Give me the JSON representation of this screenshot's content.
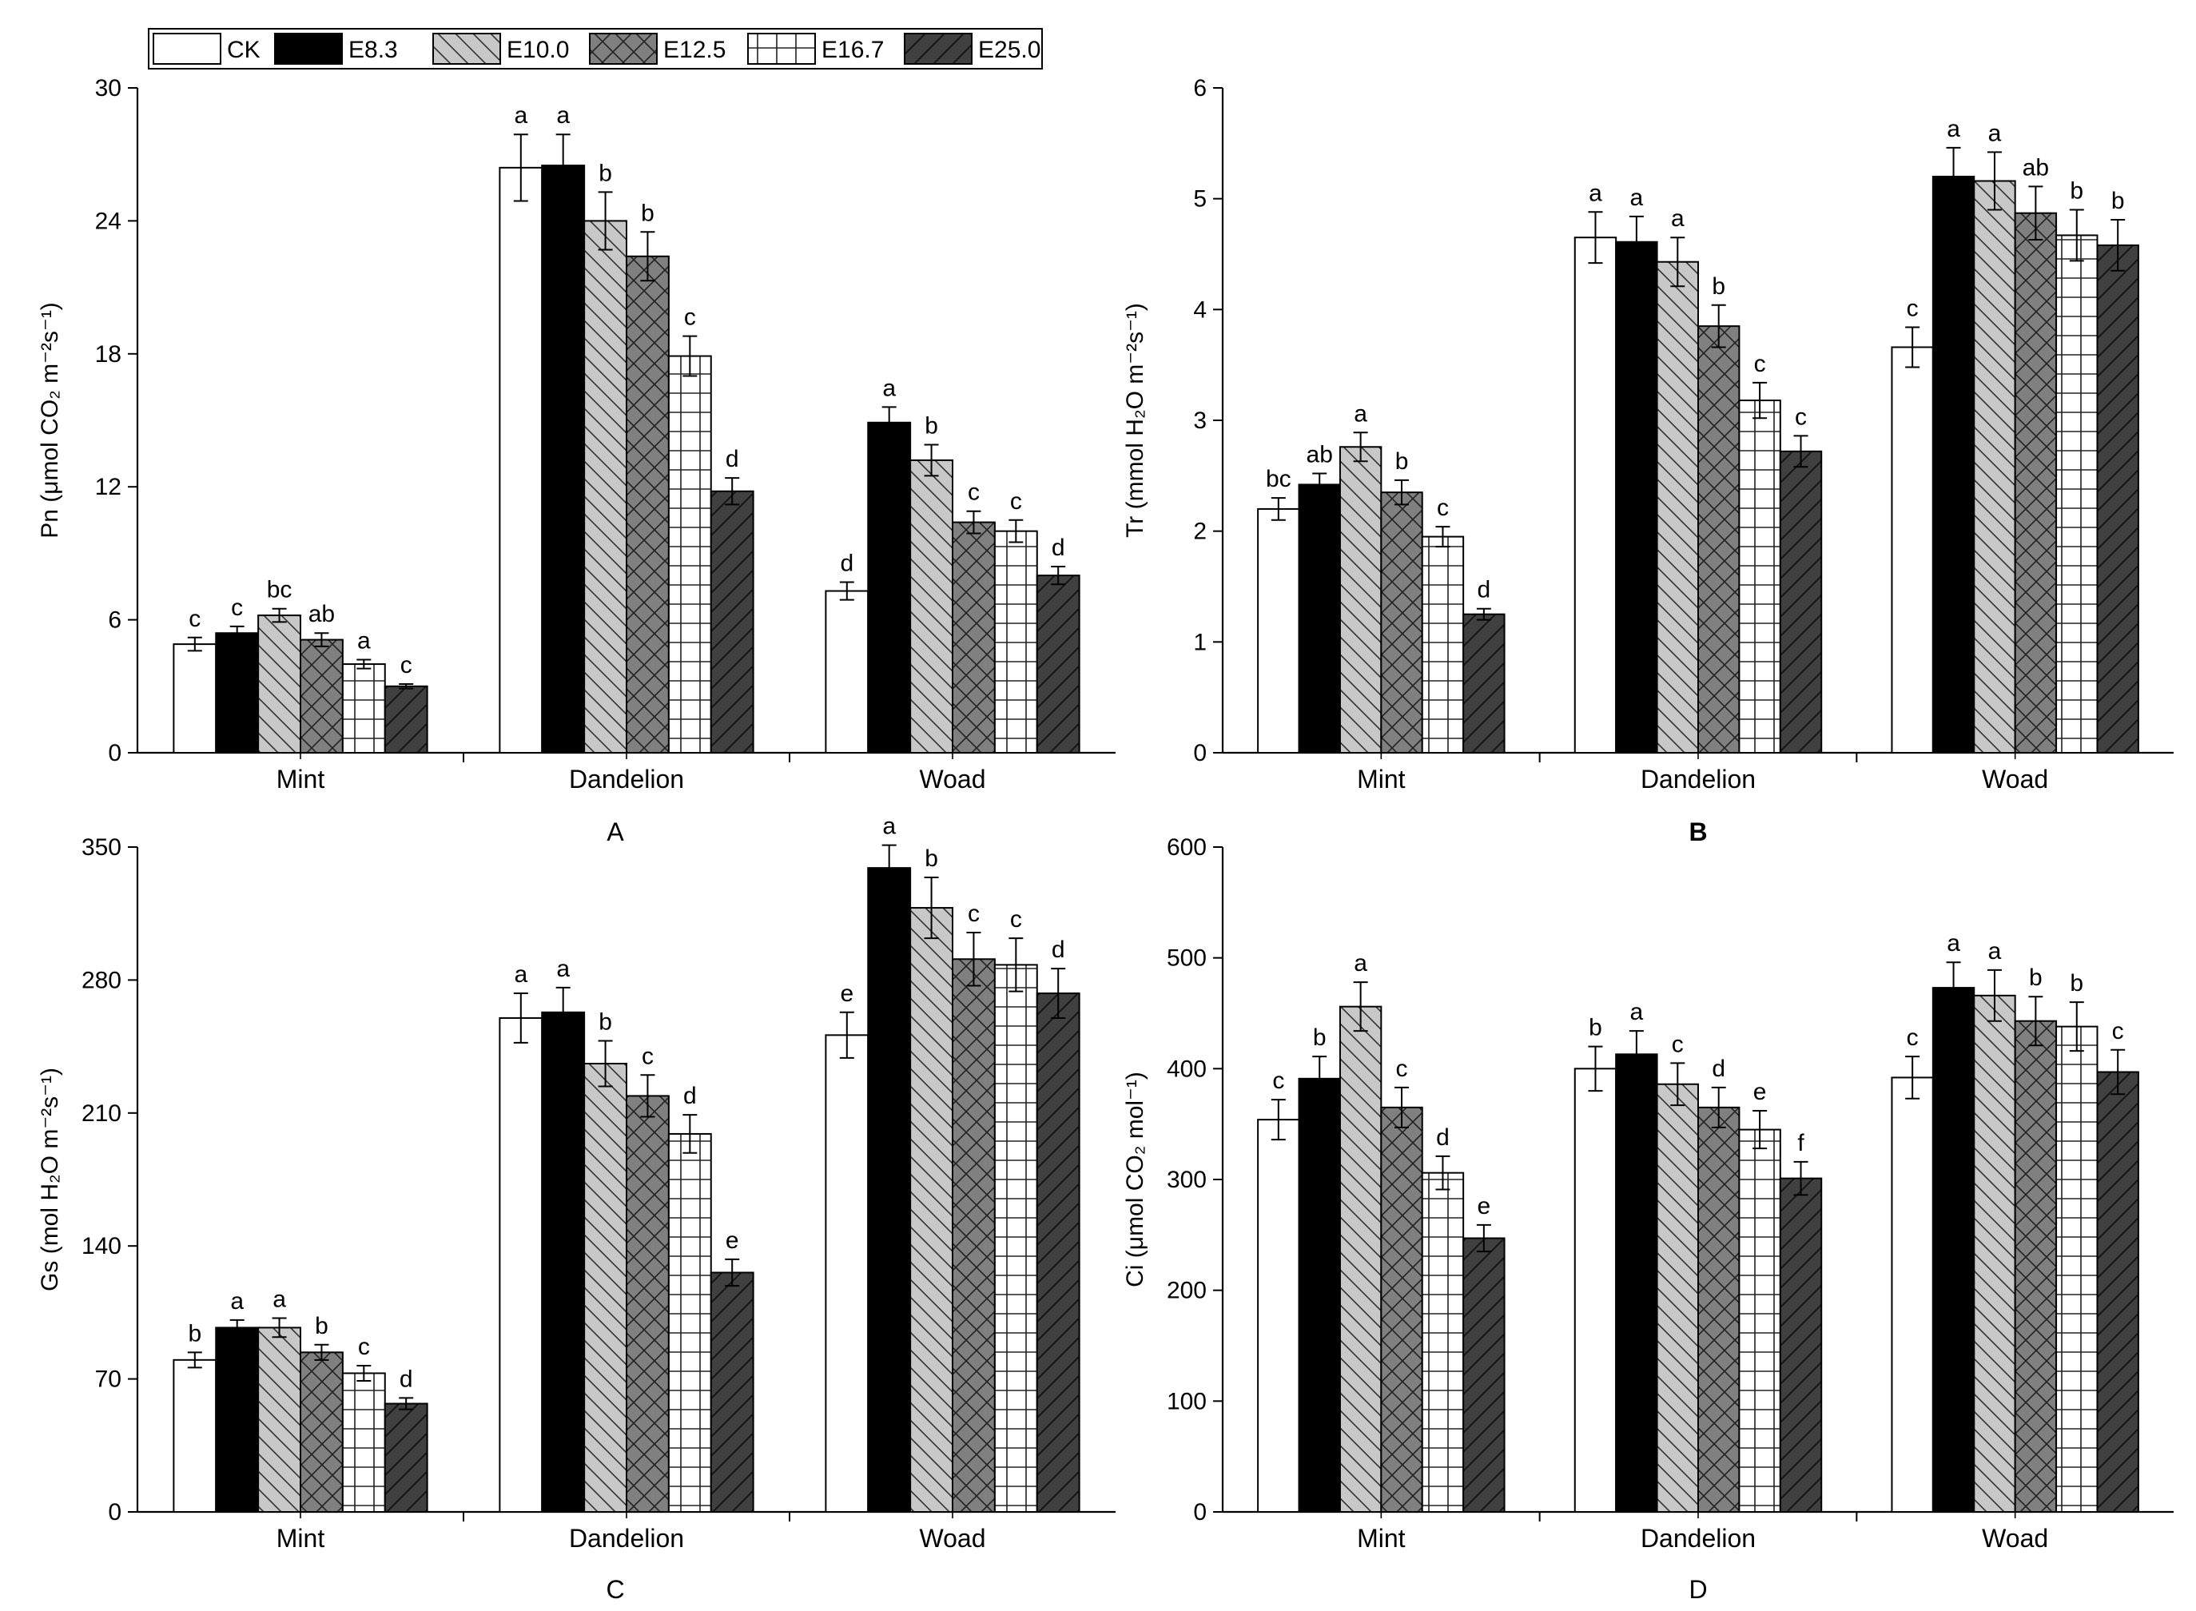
{
  "chart_data": [
    {
      "panel_label": "A",
      "type": "bar",
      "ylabel": "Pn (μmol CO₂ m⁻²s⁻¹)",
      "ylim": [
        0,
        30
      ],
      "yticks": [
        0,
        6,
        12,
        18,
        24,
        30
      ],
      "categories": [
        "Mint",
        "Dandelion",
        "Woad"
      ],
      "series": [
        {
          "name": "CK",
          "values": [
            4.9,
            26.4,
            7.3
          ],
          "errors": [
            0.3,
            1.5,
            0.4
          ],
          "sig": [
            "c",
            "a",
            "d"
          ]
        },
        {
          "name": "E8.3",
          "values": [
            5.4,
            26.5,
            14.9
          ],
          "errors": [
            0.3,
            1.4,
            0.7
          ],
          "sig": [
            "c",
            "a",
            "a"
          ]
        },
        {
          "name": "E10.0",
          "values": [
            6.2,
            24.0,
            13.2
          ],
          "errors": [
            0.3,
            1.3,
            0.7
          ],
          "sig": [
            "bc",
            "b",
            "b"
          ]
        },
        {
          "name": "E12.5",
          "values": [
            5.1,
            22.4,
            10.4
          ],
          "errors": [
            0.3,
            1.1,
            0.5
          ],
          "sig": [
            "ab",
            "b",
            "c"
          ]
        },
        {
          "name": "E16.7",
          "values": [
            4.0,
            17.9,
            10.0
          ],
          "errors": [
            0.2,
            0.9,
            0.5
          ],
          "sig": [
            "a",
            "c",
            "c"
          ]
        },
        {
          "name": "E25.0",
          "values": [
            3.0,
            11.8,
            8.0
          ],
          "errors": [
            0.1,
            0.6,
            0.4
          ],
          "sig": [
            "c",
            "d",
            "d"
          ]
        }
      ]
    },
    {
      "panel_label": "B",
      "type": "bar",
      "ylabel": "Tr (mmol H₂O m⁻²s⁻¹)",
      "ylim": [
        0,
        6
      ],
      "yticks": [
        0,
        1,
        2,
        3,
        4,
        5,
        6
      ],
      "categories": [
        "Mint",
        "Dandelion",
        "Woad"
      ],
      "series": [
        {
          "name": "CK",
          "values": [
            2.2,
            4.65,
            3.66
          ],
          "errors": [
            0.1,
            0.23,
            0.18
          ],
          "sig": [
            "bc",
            "a",
            "c"
          ]
        },
        {
          "name": "E8.3",
          "values": [
            2.42,
            4.61,
            5.2
          ],
          "errors": [
            0.1,
            0.23,
            0.26
          ],
          "sig": [
            "ab",
            "a",
            "a"
          ]
        },
        {
          "name": "E10.0",
          "values": [
            2.76,
            4.43,
            5.16
          ],
          "errors": [
            0.13,
            0.22,
            0.26
          ],
          "sig": [
            "a",
            "a",
            "a"
          ]
        },
        {
          "name": "E12.5",
          "values": [
            2.35,
            3.85,
            4.87
          ],
          "errors": [
            0.11,
            0.19,
            0.24
          ],
          "sig": [
            "b",
            "b",
            "ab"
          ]
        },
        {
          "name": "E16.7",
          "values": [
            1.95,
            3.18,
            4.67
          ],
          "errors": [
            0.09,
            0.16,
            0.23
          ],
          "sig": [
            "c",
            "c",
            "b"
          ]
        },
        {
          "name": "E25.0",
          "values": [
            1.25,
            2.72,
            4.58
          ],
          "errors": [
            0.05,
            0.14,
            0.23
          ],
          "sig": [
            "d",
            "c",
            "b"
          ]
        }
      ]
    },
    {
      "panel_label": "C",
      "type": "bar",
      "ylabel": "Gs (mol H₂O m⁻²s⁻¹)",
      "ylim": [
        0,
        350
      ],
      "yticks": [
        0,
        70,
        140,
        210,
        280,
        350
      ],
      "categories": [
        "Mint",
        "Dandelion",
        "Woad"
      ],
      "series": [
        {
          "name": "CK",
          "values": [
            80,
            260,
            251
          ],
          "errors": [
            4,
            13,
            12
          ],
          "sig": [
            "b",
            "a",
            "e"
          ]
        },
        {
          "name": "E8.3",
          "values": [
            97,
            263,
            339
          ],
          "errors": [
            4,
            13,
            12
          ],
          "sig": [
            "a",
            "a",
            "a"
          ]
        },
        {
          "name": "E10.0",
          "values": [
            97,
            236,
            318
          ],
          "errors": [
            5,
            12,
            16
          ],
          "sig": [
            "a",
            "b",
            "b"
          ]
        },
        {
          "name": "E12.5",
          "values": [
            84,
            219,
            291
          ],
          "errors": [
            4,
            11,
            14
          ],
          "sig": [
            "b",
            "c",
            "c"
          ]
        },
        {
          "name": "E16.7",
          "values": [
            73,
            199,
            288
          ],
          "errors": [
            4,
            10,
            14
          ],
          "sig": [
            "c",
            "d",
            "c"
          ]
        },
        {
          "name": "E25.0",
          "values": [
            57,
            126,
            273
          ],
          "errors": [
            3,
            7,
            13
          ],
          "sig": [
            "d",
            "e",
            "d"
          ]
        }
      ]
    },
    {
      "panel_label": "D",
      "type": "bar",
      "ylabel": "Ci (μmol CO₂ mol⁻¹)",
      "ylim": [
        0,
        600
      ],
      "yticks": [
        0,
        100,
        200,
        300,
        400,
        500,
        600
      ],
      "categories": [
        "Mint",
        "Dandelion",
        "Woad"
      ],
      "series": [
        {
          "name": "CK",
          "values": [
            354,
            400,
            392
          ],
          "errors": [
            18,
            20,
            19
          ],
          "sig": [
            "c",
            "b",
            "c"
          ]
        },
        {
          "name": "E8.3",
          "values": [
            391,
            413,
            473
          ],
          "errors": [
            20,
            21,
            23
          ],
          "sig": [
            "b",
            "a",
            "a"
          ]
        },
        {
          "name": "E10.0",
          "values": [
            456,
            386,
            466
          ],
          "errors": [
            22,
            19,
            23
          ],
          "sig": [
            "a",
            "c",
            "a"
          ]
        },
        {
          "name": "E12.5",
          "values": [
            365,
            365,
            443
          ],
          "errors": [
            18,
            18,
            22
          ],
          "sig": [
            "c",
            "d",
            "b"
          ]
        },
        {
          "name": "E16.7",
          "values": [
            306,
            345,
            438
          ],
          "errors": [
            15,
            17,
            22
          ],
          "sig": [
            "d",
            "e",
            "b"
          ]
        },
        {
          "name": "E25.0",
          "values": [
            247,
            301,
            397
          ],
          "errors": [
            12,
            15,
            20
          ],
          "sig": [
            "e",
            "f",
            "c"
          ]
        }
      ]
    }
  ],
  "legend": [
    {
      "name": "CK",
      "fill": "#ffffff",
      "pattern": "none"
    },
    {
      "name": "E8.3",
      "fill": "#000000",
      "pattern": "none"
    },
    {
      "name": "E10.0",
      "fill": "#c8c8c8",
      "pattern": "back-diagonal"
    },
    {
      "name": "E12.5",
      "fill": "#808080",
      "pattern": "crosshatch"
    },
    {
      "name": "E16.7",
      "fill": "#ffffff",
      "pattern": "grid"
    },
    {
      "name": "E25.0",
      "fill": "#404040",
      "pattern": "forward-diagonal"
    }
  ]
}
